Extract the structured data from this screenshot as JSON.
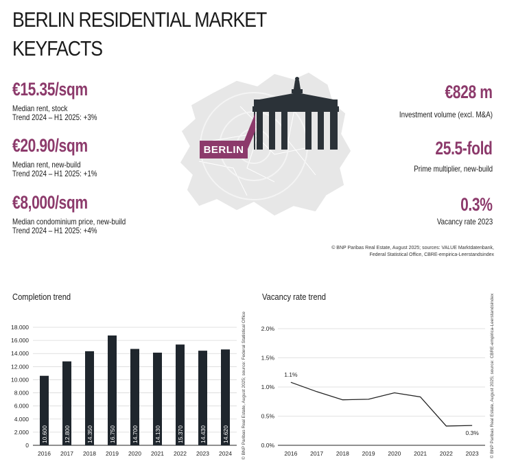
{
  "header": {
    "title": "BERLIN RESIDENTIAL MARKET",
    "subtitle": "KEYFACTS"
  },
  "kpis_left": [
    {
      "value": "€15.35/sqm",
      "line1": "Median rent, stock",
      "line2": "Trend 2024 – H1 2025: +3%"
    },
    {
      "value": "€20.90/sqm",
      "line1": "Median rent, new-build",
      "line2": "Trend 2024 – H1 2025: +1%"
    },
    {
      "value": "€8,000/sqm",
      "line1": "Median condominium price, new-build",
      "line2": "Trend 2024 – H1 2025: +4%"
    }
  ],
  "kpis_right": [
    {
      "value": "€828 m",
      "line1": "Investment volume (excl. M&A)"
    },
    {
      "value": "25.5-fold",
      "line1": "Prime multiplier, new-build"
    },
    {
      "value": "0.3%",
      "line1": "Vacancy rate  2023"
    }
  ],
  "map_label": "BERLIN",
  "source_lines": [
    "© BNP Paribas Real Estate, August 2025; sources: VALUE Marktdatenbank,",
    "Federal Statistical Office, CBRE-empirica-Leerstandsindex"
  ],
  "colors": {
    "accent": "#8c3a6b",
    "bar": "#1f262d",
    "map": "#e6e6e6",
    "gate": "#2b3238"
  },
  "chart_data": [
    {
      "type": "bar",
      "title": "Completion trend",
      "categories": [
        "2016",
        "2017",
        "2018",
        "2019",
        "2020",
        "2021",
        "2022",
        "2023",
        "2024"
      ],
      "values": [
        10600,
        12800,
        14350,
        16750,
        14700,
        14130,
        15370,
        14430,
        14620
      ],
      "value_labels": [
        "10.600",
        "12.800",
        "14.350",
        "16.750",
        "14.700",
        "14.130",
        "15.370",
        "14.430",
        "14.620"
      ],
      "yticks": [
        "0",
        "2.000",
        "4.000",
        "6.000",
        "8.000",
        "10.000",
        "12.000",
        "14.000",
        "16.000",
        "18.000"
      ],
      "ylim": [
        0,
        18000
      ],
      "grid": true,
      "source": "© BNP Paribas Real Estate, August 2025; source: Federal Statistical Office"
    },
    {
      "type": "line",
      "title": "Vacancy rate trend",
      "categories": [
        "2016",
        "2017",
        "2018",
        "2019",
        "2020",
        "2021",
        "2022",
        "2023"
      ],
      "values": [
        1.08,
        0.92,
        0.78,
        0.79,
        0.9,
        0.83,
        0.33,
        0.34
      ],
      "annotations": [
        "1.1%",
        "0.3%"
      ],
      "yticks": [
        "0.0%",
        "0.5%",
        "1.0%",
        "1.5%",
        "2.0%"
      ],
      "ylim": [
        0,
        2.0
      ],
      "grid": true,
      "source": "© BNP Paribas Real Estate, August 2025; source: CBRE-empirica-Leerstandsindex"
    }
  ]
}
